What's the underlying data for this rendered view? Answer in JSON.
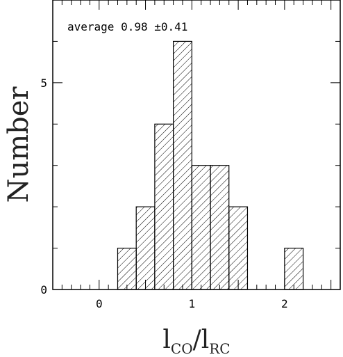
{
  "chart_data": {
    "type": "bar",
    "bin_width": 0.2,
    "bins": [
      {
        "start": 0.2,
        "end": 0.4,
        "count": 1
      },
      {
        "start": 0.4,
        "end": 0.6,
        "count": 2
      },
      {
        "start": 0.6,
        "end": 0.8,
        "count": 4
      },
      {
        "start": 0.8,
        "end": 1.0,
        "count": 6
      },
      {
        "start": 1.0,
        "end": 1.2,
        "count": 3
      },
      {
        "start": 1.2,
        "end": 1.4,
        "count": 3
      },
      {
        "start": 1.4,
        "end": 1.6,
        "count": 2
      },
      {
        "start": 2.0,
        "end": 2.2,
        "count": 1
      }
    ],
    "xlim": [
      -0.5,
      2.6
    ],
    "ylim": [
      0,
      7
    ],
    "xticks": [
      0,
      1,
      2
    ],
    "yticks": [
      0,
      5
    ],
    "ylabel": "Number",
    "xlabel": {
      "main1": "l",
      "sub1": "CO",
      "slash": "/",
      "main2": "l",
      "sub2": "RC"
    },
    "annotation": "average 0.98 ±0.41",
    "fill": "hatched"
  }
}
